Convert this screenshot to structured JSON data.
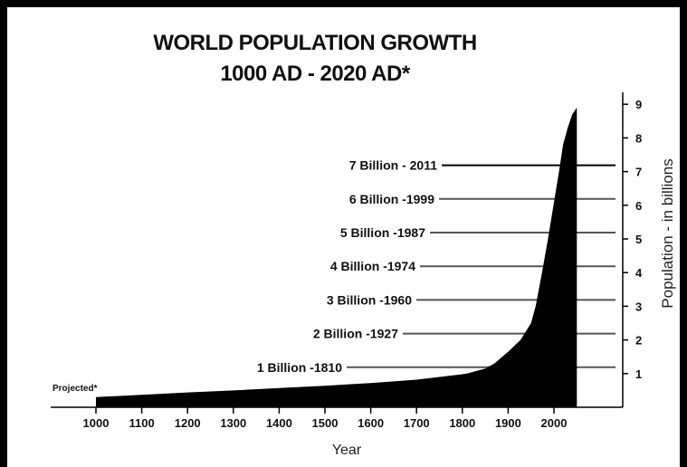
{
  "chart_data": {
    "type": "area",
    "title": "WORLD POPULATION GROWTH",
    "subtitle": "1000 AD - 2020 AD*",
    "xlabel": "Year",
    "ylabel": "Population - in billions",
    "xlim": [
      1000,
      2050
    ],
    "ylim": [
      0,
      9
    ],
    "x_ticks": [
      1000,
      1100,
      1200,
      1300,
      1400,
      1500,
      1600,
      1700,
      1800,
      1900,
      2000
    ],
    "y_ticks": [
      1,
      2,
      3,
      4,
      5,
      6,
      7,
      8,
      9
    ],
    "x": [
      1000,
      1100,
      1200,
      1300,
      1400,
      1500,
      1600,
      1700,
      1750,
      1800,
      1810,
      1850,
      1870,
      1900,
      1927,
      1950,
      1960,
      1974,
      1987,
      1999,
      2011,
      2020,
      2030,
      2040,
      2050
    ],
    "values": [
      0.3,
      0.37,
      0.44,
      0.5,
      0.57,
      0.64,
      0.72,
      0.82,
      0.9,
      0.98,
      1.0,
      1.15,
      1.3,
      1.65,
      2.0,
      2.5,
      3.0,
      4.0,
      5.0,
      6.0,
      7.0,
      7.8,
      8.3,
      8.7,
      8.9
    ],
    "projected_label": "Projected*",
    "annotations": [
      {
        "text": "7 Billion  -  2011",
        "year": 2011,
        "value": 7
      },
      {
        "text": "6 Billion -1999",
        "year": 1999,
        "value": 6
      },
      {
        "text": "5 Billion -1987",
        "year": 1987,
        "value": 5
      },
      {
        "text": "4 Billion -1974",
        "year": 1974,
        "value": 4
      },
      {
        "text": "3 Billion -1960",
        "year": 1960,
        "value": 3
      },
      {
        "text": "2 Billion -1927",
        "year": 1927,
        "value": 2
      },
      {
        "text": "1 Billion -1810",
        "year": 1810,
        "value": 1
      }
    ],
    "fill_color": "#000000",
    "leader_color": "#555555",
    "grid": false,
    "legend": "none"
  }
}
